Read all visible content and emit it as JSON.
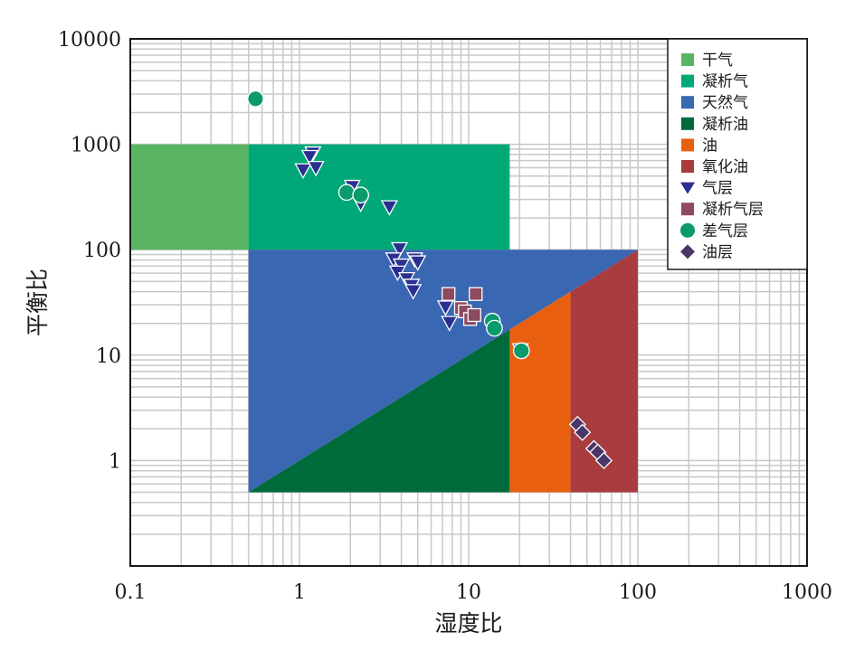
{
  "chart_data": {
    "type": "scatter",
    "xscale": "log",
    "yscale": "log",
    "xlim": [
      0.1,
      1000
    ],
    "ylim": [
      0.1,
      10000
    ],
    "xlabel": "湿度比",
    "ylabel": "平衡比",
    "grid": true,
    "legend_position": "top-right",
    "x_ticks": [
      "0.1",
      "1",
      "10",
      "100",
      "1000"
    ],
    "y_ticks": [
      "1",
      "10",
      "100",
      "1000",
      "10000"
    ],
    "regions": [
      {
        "name": "干气",
        "color": "#59b562",
        "polygon": [
          [
            0.1,
            100
          ],
          [
            0.5,
            100
          ],
          [
            0.5,
            1000
          ],
          [
            0.1,
            1000
          ]
        ]
      },
      {
        "name": "凝析气",
        "color": "#00a878",
        "polygon": [
          [
            0.5,
            100
          ],
          [
            17.5,
            100
          ],
          [
            17.5,
            1000
          ],
          [
            0.5,
            1000
          ]
        ]
      },
      {
        "name": "天然气",
        "color": "#3a67b2",
        "polygon": [
          [
            0.5,
            0.5
          ],
          [
            0.5,
            100
          ],
          [
            100,
            100
          ],
          [
            17.5,
            17.5
          ]
        ]
      },
      {
        "name": "凝析油",
        "color": "#006b3a",
        "polygon": [
          [
            0.5,
            0.5
          ],
          [
            17.5,
            0.5
          ],
          [
            17.5,
            17.5
          ]
        ]
      },
      {
        "name": "油",
        "color": "#e8600f",
        "polygon": [
          [
            17.5,
            0.5
          ],
          [
            40,
            0.5
          ],
          [
            40,
            40
          ],
          [
            17.5,
            17.5
          ]
        ]
      },
      {
        "name": "氧化油",
        "color": "#a83c3f",
        "polygon": [
          [
            40,
            0.5
          ],
          [
            100,
            0.5
          ],
          [
            100,
            100
          ],
          [
            40,
            40
          ]
        ]
      }
    ],
    "series": [
      {
        "name": "气层",
        "marker": "triangle-down",
        "color": "#2b2f8f",
        "points": [
          [
            1.2,
            810
          ],
          [
            1.15,
            750
          ],
          [
            1.05,
            560
          ],
          [
            1.25,
            590
          ],
          [
            2.05,
            390
          ],
          [
            2.3,
            270
          ],
          [
            3.4,
            250
          ],
          [
            3.9,
            100
          ],
          [
            3.6,
            80
          ],
          [
            4.0,
            70
          ],
          [
            4.8,
            80
          ],
          [
            5.0,
            75
          ],
          [
            3.8,
            60
          ],
          [
            4.3,
            52
          ],
          [
            4.6,
            45
          ],
          [
            4.7,
            40
          ],
          [
            7.3,
            28
          ],
          [
            7.7,
            20
          ],
          [
            20.2,
            11
          ]
        ]
      },
      {
        "name": "凝析气层",
        "marker": "square",
        "color": "#8e4a5e",
        "points": [
          [
            7.6,
            38
          ],
          [
            11.0,
            38
          ],
          [
            9.0,
            28
          ],
          [
            9.5,
            26
          ],
          [
            10.2,
            22
          ],
          [
            10.8,
            24
          ]
        ]
      },
      {
        "name": "差气层",
        "marker": "circle",
        "color": "#0a9a6c",
        "points": [
          [
            0.55,
            2700
          ],
          [
            1.9,
            350
          ],
          [
            2.3,
            330
          ],
          [
            13.8,
            21
          ],
          [
            14.2,
            18
          ],
          [
            20.5,
            11
          ]
        ]
      },
      {
        "name": "油层",
        "marker": "diamond",
        "color": "#4a3768",
        "points": [
          [
            44,
            2.2
          ],
          [
            47,
            1.85
          ],
          [
            55,
            1.3
          ],
          [
            58,
            1.2
          ],
          [
            63,
            1.0
          ]
        ]
      }
    ],
    "legend": [
      {
        "label": "干气",
        "symbol": "square",
        "color": "#59b562"
      },
      {
        "label": "凝析气",
        "symbol": "square",
        "color": "#00a878"
      },
      {
        "label": "天然气",
        "symbol": "square",
        "color": "#3a67b2"
      },
      {
        "label": "凝析油",
        "symbol": "square",
        "color": "#006b3a"
      },
      {
        "label": "油",
        "symbol": "square",
        "color": "#e8600f"
      },
      {
        "label": "氧化油",
        "symbol": "square",
        "color": "#a83c3f"
      },
      {
        "label": "气层",
        "symbol": "triangle-down",
        "color": "#2b2f8f"
      },
      {
        "label": "凝析气层",
        "symbol": "square",
        "color": "#8e4a5e"
      },
      {
        "label": "差气层",
        "symbol": "circle",
        "color": "#0a9a6c"
      },
      {
        "label": "油层",
        "symbol": "diamond",
        "color": "#4a3768"
      }
    ]
  }
}
